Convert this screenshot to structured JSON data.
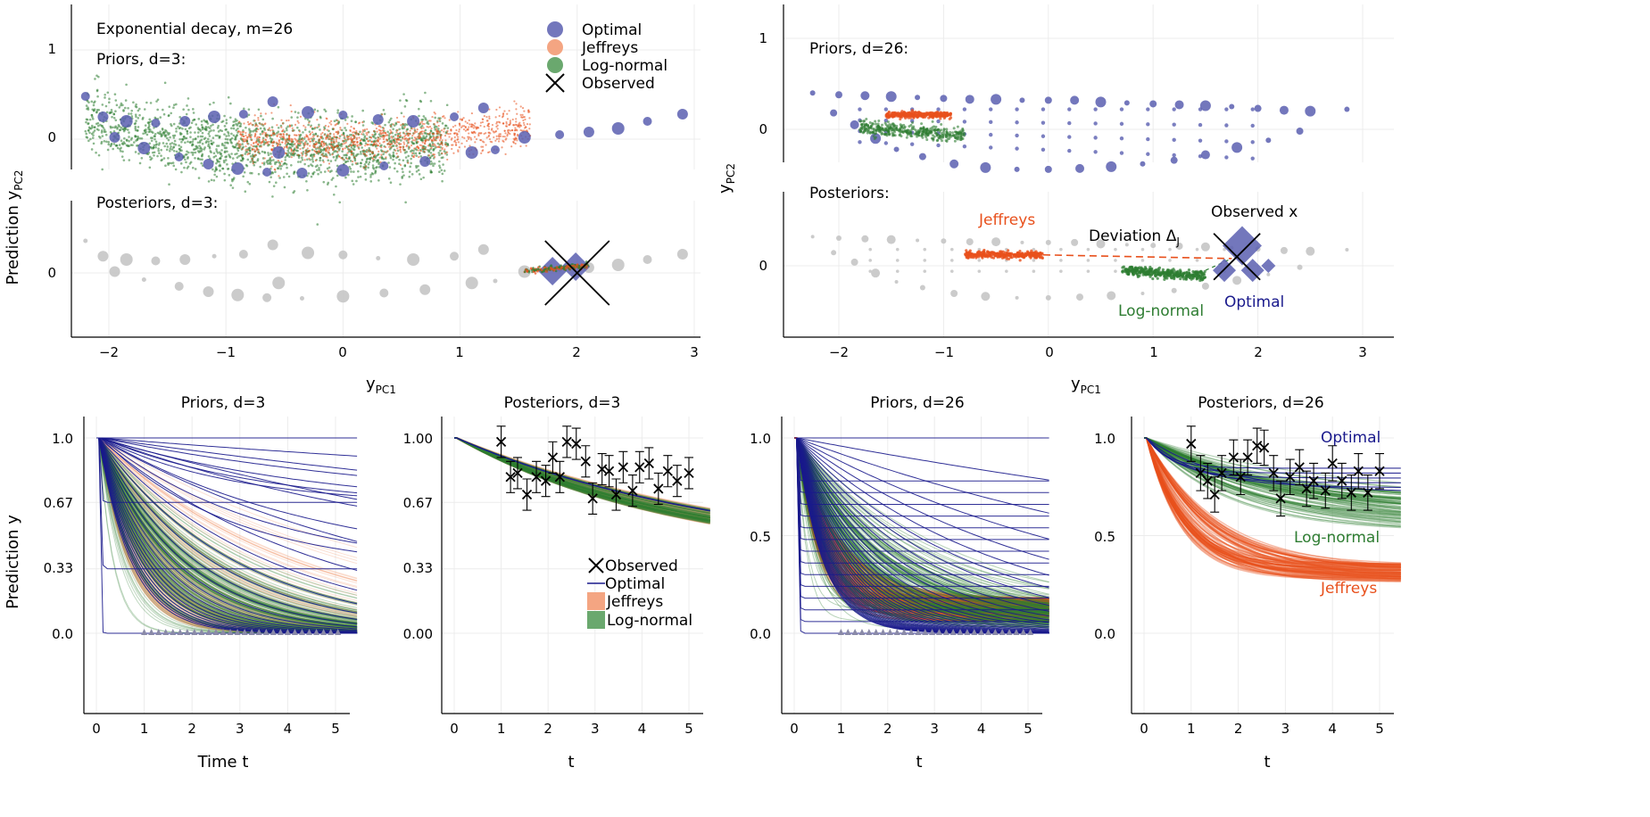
{
  "figure": {
    "colors": {
      "optimal": "#5a5fb0",
      "optimal_line": "#1a1a8c",
      "jeffreys": "#e8501c",
      "jeffreys_fill": "#f4a582",
      "lognormal": "#2e7d32",
      "lognormal_fill": "#6aa86e",
      "posterior_gray": "#c8c8c8",
      "observed": "#000000",
      "grid": "#ececec"
    },
    "left_panel": {
      "title": "Exponential decay, m=26",
      "prior_label": "Priors, d=3:",
      "posterior_label": "Posteriors, d=3:",
      "ylabel_main": "Prediction y",
      "ylabel_sub": "PC2",
      "legend": [
        "Optimal",
        "Jeffreys",
        "Log-normal",
        "Observed"
      ],
      "xticks": [
        "−2",
        "−1",
        "0",
        "1",
        "2",
        "3"
      ],
      "xlabel_main": "y",
      "xlabel_sub": "PC1",
      "prior_yticks": [
        "1",
        "0"
      ],
      "posterior_yticks": [
        "0"
      ]
    },
    "right_panel": {
      "prior_label": "Priors, d=26:",
      "posterior_label": "Posteriors:",
      "ylabel_main": "y",
      "ylabel_sub": "PC2",
      "xticks": [
        "−2",
        "−1",
        "0",
        "1",
        "2",
        "3"
      ],
      "xlabel_main": "y",
      "xlabel_sub": "PC1",
      "prior_yticks": [
        "1",
        "0"
      ],
      "posterior_yticks": [
        "0"
      ],
      "ann_jeffreys": "Jeffreys",
      "ann_deviation": "Deviation Δ",
      "ann_deviation_sub": "J",
      "ann_observed": "Observed x",
      "ann_optimal": "Optimal",
      "ann_lognormal": "Log-normal"
    },
    "bottom": [
      {
        "title": "Priors, d=3",
        "ylabel": "Prediction y",
        "xlabel": "Time t",
        "yticks": [
          "1.0",
          "0.67",
          "0.33",
          "0.0"
        ],
        "xticks": [
          "0",
          "1",
          "2",
          "3",
          "4",
          "5"
        ]
      },
      {
        "title": "Posteriors, d=3",
        "ylabel": "",
        "xlabel": "t",
        "yticks": [
          "1.00",
          "0.67",
          "0.33",
          "0.00"
        ],
        "xticks": [
          "0",
          "1",
          "2",
          "3",
          "4",
          "5"
        ],
        "legend": [
          "Observed",
          "Optimal",
          "Jeffreys",
          "Log-normal"
        ]
      },
      {
        "title": "Priors, d=26",
        "ylabel": "",
        "xlabel": "t",
        "yticks": [
          "1.0",
          "0.5",
          "0.0"
        ],
        "xticks": [
          "0",
          "1",
          "2",
          "3",
          "4",
          "5"
        ]
      },
      {
        "title": "Posteriors, d=26",
        "ylabel": "",
        "xlabel": "t",
        "yticks": [
          "1.0",
          "0.5",
          "0.0"
        ],
        "xticks": [
          "0",
          "1",
          "2",
          "3",
          "4",
          "5"
        ],
        "ann_optimal": "Optimal",
        "ann_lognormal": "Log-normal",
        "ann_jeffreys": "Jeffreys"
      }
    ]
  },
  "chart_data": [
    {
      "type": "scatter",
      "title": "Exponential decay, m=26",
      "subtitle": "Priors, d=3:",
      "xlabel": "y_PC1",
      "ylabel": "Prediction y_PC2",
      "xlim": [
        -2.5,
        3.4
      ],
      "ylim": [
        -0.45,
        1.4
      ],
      "series": [
        {
          "name": "Optimal",
          "points": [
            [
              -2.2,
              0.48
            ],
            [
              -2.05,
              0.25
            ],
            [
              -1.85,
              0.2
            ],
            [
              -1.6,
              0.18
            ],
            [
              -1.35,
              0.2
            ],
            [
              -1.1,
              0.25
            ],
            [
              -0.85,
              0.28
            ],
            [
              -0.6,
              0.42
            ],
            [
              -0.3,
              0.3
            ],
            [
              0.0,
              0.27
            ],
            [
              0.3,
              0.22
            ],
            [
              0.6,
              0.2
            ],
            [
              0.95,
              0.25
            ],
            [
              1.2,
              0.35
            ],
            [
              1.55,
              0.02
            ],
            [
              1.85,
              0.05
            ],
            [
              2.1,
              0.08
            ],
            [
              2.35,
              0.12
            ],
            [
              2.6,
              0.2
            ],
            [
              2.9,
              0.28
            ],
            [
              -1.7,
              -0.1
            ],
            [
              -1.4,
              -0.2
            ],
            [
              -1.15,
              -0.28
            ],
            [
              -0.9,
              -0.33
            ],
            [
              -0.65,
              -0.37
            ],
            [
              -0.35,
              -0.38
            ],
            [
              0.0,
              -0.35
            ],
            [
              0.35,
              -0.3
            ],
            [
              0.7,
              -0.25
            ],
            [
              1.1,
              -0.15
            ],
            [
              1.3,
              -0.12
            ],
            [
              -1.95,
              0.02
            ],
            [
              -0.55,
              -0.15
            ]
          ]
        },
        {
          "name": "Jeffreys",
          "distribution": "cloud",
          "x_range": [
            -0.9,
            1.6
          ],
          "y_range": [
            -0.15,
            0.3
          ]
        },
        {
          "name": "Log-normal",
          "distribution": "cloud",
          "x_range": [
            -2.2,
            0.9
          ],
          "y_range": [
            -0.3,
            0.45
          ]
        }
      ],
      "legend": [
        "Optimal",
        "Jeffreys",
        "Log-normal",
        "Observed"
      ],
      "legend_position": "top-right"
    },
    {
      "type": "scatter",
      "subtitle": "Posteriors, d=3:",
      "xlim": [
        -2.5,
        3.4
      ],
      "ylim": [
        -0.6,
        0.6
      ],
      "series": [
        {
          "name": "Optimal (posterior)",
          "points": [
            [
              1.85,
              0.02
            ],
            [
              2.2,
              0.05
            ]
          ]
        },
        {
          "name": "Observed",
          "points": [
            [
              2.0,
              0.0
            ]
          ]
        }
      ]
    },
    {
      "type": "scatter",
      "subtitle": "Priors, d=26:",
      "xlabel": "y_PC1",
      "ylabel": "y_PC2",
      "xlim": [
        -2.5,
        3.4
      ],
      "ylim": [
        -0.5,
        1.4
      ],
      "series": [
        {
          "name": "Optimal",
          "points": [
            [
              -2.25,
              0.4
            ],
            [
              -2.0,
              0.38
            ],
            [
              -1.75,
              0.37
            ],
            [
              -1.5,
              0.36
            ],
            [
              -1.25,
              0.35
            ],
            [
              -1.0,
              0.34
            ],
            [
              -0.75,
              0.33
            ],
            [
              -0.5,
              0.33
            ],
            [
              -0.25,
              0.32
            ],
            [
              0.0,
              0.32
            ],
            [
              0.25,
              0.32
            ],
            [
              0.5,
              0.3
            ],
            [
              0.75,
              0.29
            ],
            [
              1.0,
              0.28
            ],
            [
              1.25,
              0.27
            ],
            [
              1.5,
              0.26
            ],
            [
              1.75,
              0.25
            ],
            [
              2.0,
              0.23
            ],
            [
              2.25,
              0.21
            ],
            [
              2.5,
              0.2
            ],
            [
              2.85,
              0.22
            ],
            [
              -2.05,
              0.18
            ],
            [
              -1.85,
              0.05
            ],
            [
              -1.65,
              -0.1
            ],
            [
              -1.45,
              -0.22
            ],
            [
              -1.2,
              -0.3
            ],
            [
              -0.9,
              -0.38
            ],
            [
              -0.6,
              -0.42
            ],
            [
              -0.3,
              -0.44
            ],
            [
              0.0,
              -0.44
            ],
            [
              0.3,
              -0.43
            ],
            [
              0.6,
              -0.41
            ],
            [
              0.9,
              -0.38
            ],
            [
              1.2,
              -0.34
            ],
            [
              1.5,
              -0.28
            ],
            [
              1.8,
              -0.2
            ],
            [
              2.1,
              -0.12
            ],
            [
              2.4,
              -0.02
            ]
          ]
        },
        {
          "name": "Jeffreys",
          "distribution": "cloud",
          "x_range": [
            -1.55,
            -0.9
          ],
          "y_range": [
            0.13,
            0.2
          ]
        },
        {
          "name": "Log-normal",
          "distribution": "cloud",
          "x_range": [
            -1.8,
            -0.8
          ],
          "y_range": [
            -0.15,
            0.08
          ]
        }
      ]
    },
    {
      "type": "scatter",
      "subtitle": "Posteriors:",
      "xlim": [
        -2.5,
        3.4
      ],
      "ylim": [
        -0.6,
        0.6
      ],
      "series": [
        {
          "name": "Jeffreys",
          "distribution": "cloud",
          "x_range": [
            -0.8,
            -0.05
          ],
          "y_range": [
            0.08,
            0.15
          ]
        },
        {
          "name": "Log-normal",
          "distribution": "cloud",
          "x_range": [
            0.7,
            1.5
          ],
          "y_range": [
            -0.15,
            -0.03
          ]
        },
        {
          "name": "Optimal",
          "points": [
            [
              1.85,
              0.22
            ],
            [
              1.7,
              -0.05
            ],
            [
              1.95,
              -0.05
            ],
            [
              2.1,
              0.0
            ]
          ]
        },
        {
          "name": "Observed",
          "points": [
            [
              1.8,
              0.1
            ]
          ]
        }
      ]
    },
    {
      "type": "line",
      "title": "Priors, d=3",
      "xlabel": "Time t",
      "ylabel": "Prediction y",
      "xlim": [
        -0.2,
        5.5
      ],
      "ylim": [
        -0.02,
        1.02
      ],
      "series": [
        {
          "name": "Optimal",
          "model": "exp(-k t)"
        },
        {
          "name": "Jeffreys",
          "model": "exp(-k t)"
        },
        {
          "name": "Log-normal",
          "model": "exp(-k t)"
        }
      ],
      "observation_times": [
        1.0,
        1.15,
        1.3,
        1.45,
        1.6,
        1.75,
        1.9,
        2.05,
        2.2,
        2.35,
        2.5,
        2.65,
        2.8,
        2.95,
        3.1,
        3.25,
        3.4,
        3.55,
        3.7,
        3.85,
        4.0,
        4.15,
        4.3,
        4.45,
        4.6,
        4.75,
        4.9,
        5.05
      ]
    },
    {
      "type": "line",
      "title": "Posteriors, d=3",
      "xlabel": "t",
      "xlim": [
        -0.2,
        5.5
      ],
      "ylim": [
        -0.02,
        1.05
      ],
      "series": [
        {
          "name": "Observed",
          "x": [
            1.0,
            1.2,
            1.35,
            1.55,
            1.75,
            1.95,
            2.1,
            2.25,
            2.4,
            2.6,
            2.8,
            2.95,
            3.15,
            3.3,
            3.45,
            3.6,
            3.8,
            3.95,
            4.15,
            4.35,
            4.55,
            4.75,
            5.0
          ],
          "y": [
            0.98,
            0.8,
            0.82,
            0.71,
            0.8,
            0.78,
            0.9,
            0.8,
            0.98,
            0.97,
            0.88,
            0.69,
            0.84,
            0.83,
            0.71,
            0.85,
            0.73,
            0.85,
            0.87,
            0.74,
            0.83,
            0.78,
            0.82
          ],
          "err": 0.08
        },
        {
          "name": "Optimal"
        },
        {
          "name": "Jeffreys"
        },
        {
          "name": "Log-normal"
        }
      ],
      "legend": [
        "Observed",
        "Optimal",
        "Jeffreys",
        "Log-normal"
      ],
      "legend_position": "bottom-right"
    },
    {
      "type": "line",
      "title": "Priors, d=26",
      "xlabel": "t",
      "xlim": [
        -0.2,
        5.5
      ],
      "ylim": [
        -0.02,
        1.02
      ],
      "series": [
        {
          "name": "Optimal"
        },
        {
          "name": "Jeffreys"
        },
        {
          "name": "Log-normal"
        }
      ]
    },
    {
      "type": "line",
      "title": "Posteriors, d=26",
      "xlabel": "t",
      "xlim": [
        -0.2,
        5.5
      ],
      "ylim": [
        -0.02,
        1.02
      ],
      "series": [
        {
          "name": "Observed",
          "x": [
            1.0,
            1.2,
            1.35,
            1.5,
            1.65,
            1.9,
            2.05,
            2.2,
            2.4,
            2.55,
            2.75,
            2.9,
            3.1,
            3.3,
            3.45,
            3.6,
            3.85,
            4.0,
            4.2,
            4.4,
            4.55,
            4.75,
            5.0
          ],
          "y": [
            0.97,
            0.82,
            0.78,
            0.71,
            0.82,
            0.9,
            0.8,
            0.9,
            0.96,
            0.95,
            0.82,
            0.69,
            0.8,
            0.85,
            0.74,
            0.78,
            0.73,
            0.87,
            0.78,
            0.72,
            0.83,
            0.72,
            0.83
          ],
          "err": 0.09
        },
        {
          "name": "Optimal",
          "label": "Optimal"
        },
        {
          "name": "Log-normal",
          "label": "Log-normal"
        },
        {
          "name": "Jeffreys",
          "label": "Jeffreys"
        }
      ]
    }
  ]
}
